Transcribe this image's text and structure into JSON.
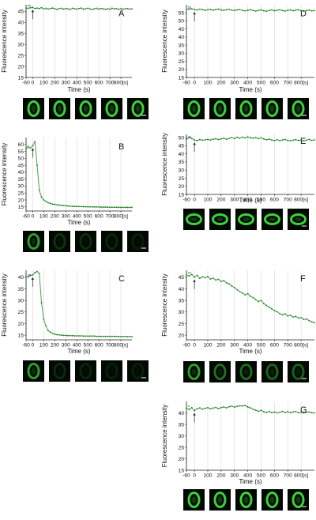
{
  "colors": {
    "series": "#4ba24b",
    "marker": "#1f7a1f",
    "axis": "#222222",
    "grid": "#cfcfcf",
    "cell_bg": "#020802",
    "cell_ring": "#3bd13b",
    "scale_bar": "#ffffff"
  },
  "chart_data": [
    {
      "panel": "A",
      "type": "line",
      "xlabel": "Time (s)",
      "ylabel": "Fluorescence intensity",
      "x_ticks": [
        "-60",
        "0",
        "100",
        "200",
        "300",
        "400",
        "500",
        "600",
        "700",
        "800[s]"
      ],
      "y_ticks": [
        15,
        20,
        25,
        30,
        35,
        40,
        45
      ],
      "xlim": [
        -60,
        900
      ],
      "ylim": [
        15,
        48
      ],
      "grid": true,
      "marker_value": "46",
      "arrow_at_x": 0,
      "x": [
        -60,
        -40,
        -20,
        0,
        20,
        40,
        60,
        80,
        100,
        120,
        140,
        160,
        180,
        200,
        220,
        240,
        260,
        280,
        300,
        320,
        340,
        360,
        380,
        400,
        420,
        440,
        460,
        480,
        500,
        520,
        540,
        560,
        580,
        600,
        620,
        640,
        660,
        680,
        700,
        720,
        740,
        760,
        780,
        800,
        820,
        840,
        860,
        880,
        900
      ],
      "values": [
        46.5,
        46.4,
        46.6,
        46.8,
        46.2,
        46.5,
        46.3,
        46.7,
        46.1,
        46.4,
        46.0,
        46.3,
        46.5,
        46.2,
        45.9,
        46.3,
        46.4,
        46.0,
        46.3,
        46.1,
        45.9,
        46.4,
        46.2,
        46.0,
        46.3,
        46.5,
        46.0,
        46.2,
        46.4,
        46.1,
        45.8,
        46.2,
        46.4,
        46.0,
        46.3,
        46.1,
        45.9,
        46.2,
        46.0,
        46.4,
        46.1,
        46.3,
        45.9,
        46.2,
        46.0,
        46.1,
        46.3,
        46.0,
        46.1
      ],
      "thumbnails": 5,
      "thumb_brightness": 1.0
    },
    {
      "panel": "B",
      "type": "line",
      "xlabel": "Time (s)",
      "ylabel": "Fluorescence intensity",
      "x_ticks": [
        "-60",
        "0",
        "100",
        "200",
        "300",
        "400",
        "500",
        "600",
        "700",
        "800[s]"
      ],
      "y_ticks": [
        15,
        20,
        25,
        30,
        35,
        40,
        45,
        50,
        55,
        60
      ],
      "xlim": [
        -60,
        900
      ],
      "ylim": [
        12,
        65
      ],
      "grid": true,
      "marker_value": "6",
      "arrow_at_x": 0,
      "x": [
        -60,
        -40,
        -20,
        0,
        20,
        40,
        60,
        80,
        100,
        120,
        140,
        160,
        180,
        200,
        220,
        240,
        260,
        280,
        300,
        320,
        340,
        360,
        380,
        400,
        420,
        440,
        460,
        480,
        500,
        520,
        540,
        560,
        580,
        600,
        620,
        640,
        660,
        680,
        700,
        720,
        740,
        760,
        780,
        800,
        820,
        840,
        860,
        880,
        900
      ],
      "values": [
        57,
        58,
        57.5,
        59,
        62,
        45,
        27,
        22,
        20,
        19,
        18,
        17.5,
        17,
        16.8,
        16.5,
        16.3,
        16.1,
        15.9,
        15.8,
        15.6,
        15.5,
        15.4,
        15.3,
        15.3,
        15.2,
        15.2,
        15.1,
        15.1,
        15.0,
        15.0,
        15.0,
        14.9,
        14.9,
        14.9,
        14.8,
        14.8,
        14.8,
        14.8,
        14.7,
        14.7,
        14.7,
        14.7,
        14.6,
        14.6,
        14.6,
        14.6,
        14.6,
        14.6,
        14.6
      ],
      "thumbnails": 5,
      "thumb_brightness": 0.25
    },
    {
      "panel": "C",
      "type": "line",
      "xlabel": "Time (s)",
      "ylabel": "Fluorescence intensity",
      "x_ticks": [
        "-60",
        "0",
        "100",
        "200",
        "300",
        "400",
        "500",
        "600",
        "700",
        "800[s]"
      ],
      "y_ticks": [
        15,
        20,
        25,
        30,
        35,
        40
      ],
      "xlim": [
        -60,
        900
      ],
      "ylim": [
        13,
        43
      ],
      "grid": true,
      "marker_value": "38",
      "arrow_at_x": 0,
      "x": [
        -60,
        -40,
        -20,
        0,
        20,
        40,
        60,
        80,
        100,
        120,
        140,
        160,
        180,
        200,
        220,
        240,
        260,
        280,
        300,
        320,
        340,
        360,
        380,
        400,
        420,
        440,
        460,
        480,
        500,
        520,
        540,
        560,
        580,
        600,
        620,
        640,
        660,
        680,
        700,
        720,
        740,
        760,
        780,
        800,
        820,
        840,
        860,
        880,
        900
      ],
      "values": [
        40,
        40.2,
        40.8,
        41,
        42,
        42.5,
        41.5,
        29,
        22,
        19,
        17,
        16.3,
        15.8,
        15.4,
        15.2,
        15.1,
        15.0,
        14.9,
        14.9,
        14.8,
        14.8,
        14.8,
        14.7,
        14.7,
        14.7,
        14.7,
        14.6,
        14.6,
        14.6,
        14.6,
        14.6,
        14.6,
        14.5,
        14.5,
        14.5,
        14.5,
        14.5,
        14.5,
        14.5,
        14.5,
        14.5,
        14.5,
        14.4,
        14.4,
        14.4,
        14.4,
        14.4,
        14.4,
        14.4
      ],
      "thumbnails": 5,
      "thumb_brightness": 0.2
    },
    {
      "panel": "D",
      "type": "line",
      "xlabel": "Time (s)",
      "ylabel": "Fluorescence intensity",
      "x_ticks": [
        "-60",
        "0",
        "100",
        "200",
        "300",
        "400",
        "500",
        "600",
        "700",
        "800[s]"
      ],
      "y_ticks": [
        15,
        20,
        25,
        30,
        35,
        40,
        45,
        50,
        55
      ],
      "xlim": [
        -60,
        900
      ],
      "ylim": [
        15,
        60
      ],
      "grid": true,
      "marker_value": "56",
      "arrow_at_x": 0,
      "x": [
        -60,
        -40,
        -20,
        0,
        20,
        40,
        60,
        80,
        100,
        120,
        140,
        160,
        180,
        200,
        220,
        240,
        260,
        280,
        300,
        320,
        340,
        360,
        380,
        400,
        420,
        440,
        460,
        480,
        500,
        520,
        540,
        560,
        580,
        600,
        620,
        640,
        660,
        680,
        700,
        720,
        740,
        760,
        780,
        800,
        820,
        840,
        860,
        880,
        900
      ],
      "values": [
        57,
        57.3,
        57.5,
        57,
        56.8,
        57.2,
        57,
        56.5,
        56.9,
        57.1,
        56.6,
        57,
        57.3,
        56.8,
        56.5,
        56.9,
        57.1,
        56.7,
        56.4,
        56.8,
        57,
        56.5,
        56.2,
        56.6,
        56.9,
        56.4,
        56.1,
        56.5,
        56.8,
        56.3,
        56,
        56.5,
        56.8,
        56.3,
        56.6,
        56.9,
        56.4,
        56.1,
        56.5,
        56.8,
        56.3,
        56.6,
        56.9,
        56.3,
        56,
        56.4,
        56.7,
        56.2,
        56.4
      ],
      "thumbnails": 5,
      "thumb_brightness": 1.0
    },
    {
      "panel": "E",
      "type": "line",
      "xlabel": "Time (s)",
      "ylabel": "Fluorescence intensity",
      "x_ticks": [
        "-60",
        "0",
        "100",
        "200",
        "300",
        "400",
        "500",
        "600",
        "700",
        "800[s]"
      ],
      "y_ticks": [
        15,
        20,
        25,
        30,
        35,
        40,
        45,
        50
      ],
      "xlim": [
        -60,
        900
      ],
      "ylim": [
        15,
        52
      ],
      "grid": true,
      "marker_value": "49",
      "arrow_at_x": 0,
      "x": [
        -60,
        -40,
        -20,
        0,
        20,
        40,
        60,
        80,
        100,
        120,
        140,
        160,
        180,
        200,
        220,
        240,
        260,
        280,
        300,
        320,
        340,
        360,
        380,
        400,
        420,
        440,
        460,
        480,
        500,
        520,
        540,
        560,
        580,
        600,
        620,
        640,
        660,
        680,
        700,
        720,
        740,
        760,
        780,
        800,
        820,
        840,
        860,
        880,
        900
      ],
      "values": [
        49,
        50,
        49.5,
        48.5,
        48.2,
        48.8,
        48.4,
        48.6,
        48.9,
        48.5,
        49,
        49.3,
        48.8,
        49.2,
        49.6,
        49,
        49.5,
        50,
        49.4,
        50.2,
        49.7,
        50.3,
        49.8,
        50.4,
        49.9,
        49.6,
        50,
        49.4,
        49.8,
        49.2,
        48.7,
        49.1,
        48.5,
        48.2,
        48.7,
        48.1,
        48.5,
        48.9,
        48.3,
        48,
        48.4,
        48.8,
        48.2,
        48.5,
        48,
        48.4,
        48.9,
        48.3,
        48.6
      ],
      "thumbnails": 5,
      "thumb_brightness": 1.0
    },
    {
      "panel": "F",
      "type": "line",
      "xlabel": "Time (s)",
      "ylabel": "Fluorescence intensity",
      "x_ticks": [
        "-60",
        "0",
        "100",
        "200",
        "300",
        "400",
        "500",
        "600",
        "700",
        "800[s]"
      ],
      "y_ticks": [
        20,
        25,
        30,
        35,
        40,
        45
      ],
      "xlim": [
        -60,
        900
      ],
      "ylim": [
        18,
        48
      ],
      "grid": true,
      "marker_value": "44",
      "arrow_at_x": 0,
      "x": [
        -60,
        -40,
        -20,
        0,
        20,
        40,
        60,
        80,
        100,
        120,
        140,
        160,
        180,
        200,
        220,
        240,
        260,
        280,
        300,
        320,
        340,
        360,
        380,
        400,
        420,
        440,
        460,
        480,
        500,
        520,
        540,
        560,
        580,
        600,
        620,
        640,
        660,
        680,
        700,
        720,
        740,
        760,
        780,
        800,
        820,
        840,
        860,
        880,
        900
      ],
      "values": [
        46,
        45.5,
        46.2,
        45,
        45.8,
        44.5,
        45.2,
        44.8,
        45.3,
        44.2,
        44.6,
        43.8,
        44.1,
        43.2,
        43.5,
        42.6,
        42.1,
        41.2,
        40.5,
        39.6,
        38.8,
        38.2,
        37.4,
        37.9,
        36.8,
        36.2,
        35.3,
        34.5,
        35,
        33.6,
        32.8,
        32.1,
        31.4,
        30.6,
        30.1,
        29.3,
        28.8,
        29.2,
        28.3,
        28.6,
        27.8,
        28.1,
        27.4,
        27.6,
        26.8,
        27,
        26.3,
        25.8,
        25.4
      ],
      "thumbnails": 5,
      "thumb_brightness": 0.55
    },
    {
      "panel": "G",
      "type": "line",
      "xlabel": "Time (s)",
      "ylabel": "Fluorescence intensity",
      "x_ticks": [
        "-60",
        "0",
        "100",
        "200",
        "300",
        "400",
        "500",
        "600",
        "700",
        "800[s]"
      ],
      "y_ticks": [
        15,
        20,
        25,
        30,
        35,
        40
      ],
      "xlim": [
        -60,
        900
      ],
      "ylim": [
        15,
        45
      ],
      "grid": true,
      "marker_value": "4",
      "arrow_at_x": 0,
      "x": [
        -60,
        -40,
        -20,
        0,
        20,
        40,
        60,
        80,
        100,
        120,
        140,
        160,
        180,
        200,
        220,
        240,
        260,
        280,
        300,
        320,
        340,
        360,
        380,
        400,
        420,
        440,
        460,
        480,
        500,
        520,
        540,
        560,
        580,
        600,
        620,
        640,
        660,
        680,
        700,
        720,
        740,
        760,
        780,
        800,
        820,
        840,
        860,
        880,
        900
      ],
      "values": [
        42,
        41.5,
        42.3,
        41,
        41.8,
        42.2,
        41.6,
        42,
        42.3,
        41.8,
        42.1,
        42.4,
        41.9,
        42.3,
        42.6,
        42.2,
        42.7,
        43,
        42.5,
        42.9,
        43.1,
        43,
        43.2,
        42.6,
        42.2,
        41.6,
        41.2,
        40.7,
        41.1,
        40.5,
        40.2,
        40.6,
        40.1,
        40.4,
        40,
        40.3,
        40.7,
        40.2,
        40.5,
        40.1,
        40.4,
        40.6,
        40.1,
        40.3,
        40,
        40.2,
        40.4,
        40.1,
        40
      ],
      "thumbnails": 5,
      "thumb_brightness": 1.0
    }
  ]
}
